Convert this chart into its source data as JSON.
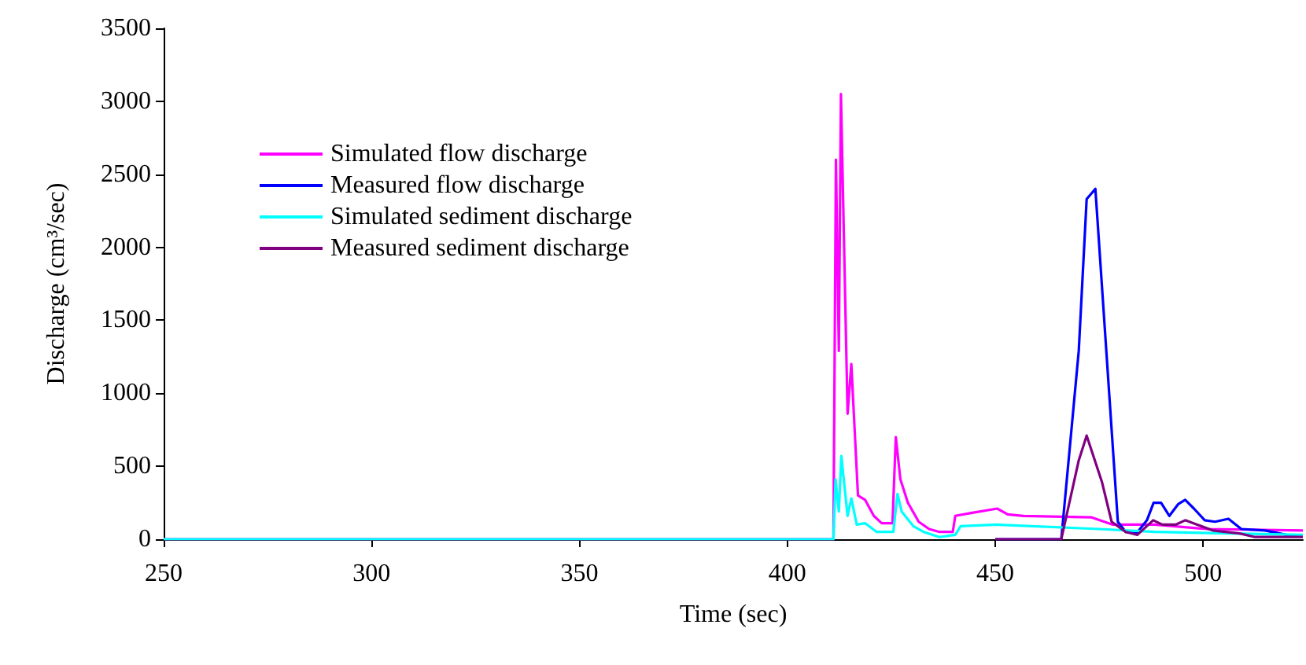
{
  "chart_data": {
    "type": "line",
    "xlabel": "Time (sec)",
    "ylabel": "Discharge (cm³/sec)",
    "xlim": [
      250,
      524
    ],
    "xticks": [
      250,
      300,
      350,
      400,
      450,
      500
    ],
    "ylim": [
      0,
      3500
    ],
    "yticks": [
      0,
      500,
      1000,
      1500,
      2000,
      2500,
      3000,
      3500
    ],
    "grid": false,
    "legend": "left",
    "marker": "none",
    "line_style": "solid",
    "series": [
      {
        "name": "Simulated flow discharge",
        "color": "#ff00ff",
        "x": [
          250,
          411.1,
          411.7,
          412.4,
          412.9,
          414.5,
          415.4,
          417.0,
          418.7,
          420.8,
          422.7,
          425.3,
          426.1,
          427.2,
          429.0,
          431.6,
          434.1,
          436.6,
          439.8,
          440.4,
          444.2,
          450.5,
          453,
          456.8,
          473.2,
          478.3,
          488.4,
          501,
          524
        ],
        "values": [
          0,
          0,
          2600,
          1290,
          3050,
          860,
          1200,
          300,
          270,
          160,
          110,
          110,
          700,
          410,
          250,
          120,
          70,
          50,
          50,
          160,
          180,
          210,
          170,
          160,
          150,
          100,
          100,
          70,
          60
        ]
      },
      {
        "name": "Measured flow discharge",
        "color": "#0000ff",
        "x": [
          450,
          465.9,
          470.1,
          472.0,
          474.1,
          479.5,
          481.4,
          484,
          486.5,
          488.1,
          489.9,
          491.9,
          494.0,
          495.7,
          497.8,
          500.4,
          502.9,
          506.1,
          509.2,
          514.9,
          520,
          524
        ],
        "values": [
          0,
          0,
          1290,
          2330,
          2400,
          120,
          50,
          40,
          130,
          250,
          250,
          160,
          240,
          270,
          210,
          130,
          120,
          140,
          70,
          60,
          30,
          25
        ]
      },
      {
        "name": "Simulated sediment discharge",
        "color": "#00ffff",
        "x": [
          250,
          411.1,
          411.6,
          412.4,
          413.0,
          414.5,
          415.4,
          416.7,
          418.7,
          421.5,
          425.5,
          426.5,
          427.5,
          430.3,
          432.8,
          436.6,
          440.4,
          441.7,
          450.5,
          475,
          488.4,
          524
        ],
        "values": [
          0,
          0,
          410,
          190,
          570,
          160,
          280,
          100,
          110,
          50,
          50,
          310,
          190,
          90,
          50,
          15,
          30,
          90,
          100,
          70,
          50,
          30
        ]
      },
      {
        "name": "Measured sediment discharge",
        "color": "#800080",
        "x": [
          450,
          465.9,
          470.1,
          472.0,
          475.7,
          478.0,
          481.4,
          484.2,
          488.0,
          490.2,
          493.4,
          495.7,
          498.6,
          502.3,
          508.8,
          512.5,
          524
        ],
        "values": [
          0,
          0,
          540,
          710,
          390,
          120,
          50,
          30,
          130,
          100,
          100,
          130,
          100,
          60,
          40,
          15,
          15
        ]
      }
    ]
  }
}
